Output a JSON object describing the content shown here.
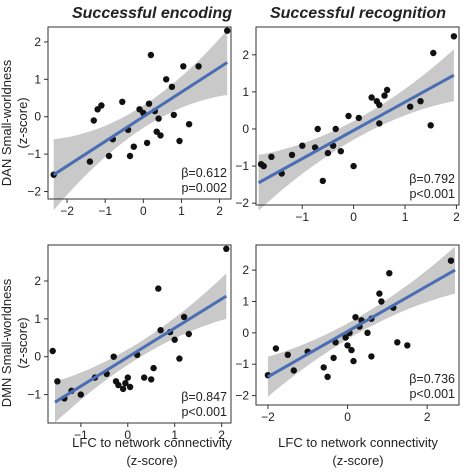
{
  "figure": {
    "column_titles": [
      "Successful encoding",
      "Successful recognition"
    ],
    "row_labels": [
      {
        "line1": "DAN Small-worldness",
        "line2": "(z-score)"
      },
      {
        "line1": "DMN Small-worldness",
        "line2": "(z-score)"
      }
    ],
    "x_label": {
      "line1": "LFC to network connectivity",
      "line2": "(z-score)"
    }
  },
  "colors": {
    "fit_line": "#4a6db3",
    "ci_band": "#c9c9c9",
    "points": "#111111",
    "frame": "#333333"
  },
  "chart_data": [
    {
      "id": "encoding-dan",
      "type": "scatter",
      "column": "Successful encoding",
      "ylabel": "DAN Small-worldness (z-score)",
      "xlim": [
        -2.5,
        2.3
      ],
      "ylim": [
        -2.2,
        2.4
      ],
      "xticks": [
        -2,
        -1,
        0,
        1,
        2
      ],
      "yticks": [
        -2,
        -1,
        0,
        1,
        2
      ],
      "xtick_labels": [
        "−2",
        "−1",
        "0",
        "1",
        "2"
      ],
      "ytick_labels": [
        "−2",
        "−1",
        "0",
        "1",
        "2"
      ],
      "fit": {
        "x1": -2.35,
        "y1": -1.55,
        "x2": 2.2,
        "y2": 1.45
      },
      "ci": {
        "spread_ends": 0.95,
        "spread_center": 0.3,
        "x_center": 0.0
      },
      "beta": "β=0.612",
      "p": "p=0.002",
      "points": [
        [
          -2.35,
          -1.55
        ],
        [
          -1.4,
          -1.2
        ],
        [
          -1.3,
          -0.1
        ],
        [
          -1.2,
          0.2
        ],
        [
          -1.1,
          0.3
        ],
        [
          -0.9,
          -1.05
        ],
        [
          -0.8,
          -0.6
        ],
        [
          -0.55,
          0.4
        ],
        [
          -0.4,
          -0.35
        ],
        [
          -0.35,
          -1.05
        ],
        [
          -0.25,
          -0.8
        ],
        [
          -0.1,
          0.2
        ],
        [
          0.0,
          0.1
        ],
        [
          0.1,
          -0.7
        ],
        [
          0.15,
          0.35
        ],
        [
          0.2,
          1.65
        ],
        [
          0.3,
          0.15
        ],
        [
          0.35,
          -0.4
        ],
        [
          0.4,
          -0.05
        ],
        [
          0.45,
          -0.5
        ],
        [
          0.6,
          1.0
        ],
        [
          0.75,
          0.8
        ],
        [
          0.95,
          -0.65
        ],
        [
          1.05,
          1.35
        ],
        [
          1.2,
          -0.2
        ],
        [
          1.45,
          1.35
        ],
        [
          2.2,
          2.3
        ],
        [
          0.8,
          0.05
        ]
      ]
    },
    {
      "id": "recognition-dan",
      "type": "scatter",
      "column": "Successful recognition",
      "ylabel": "DAN Small-worldness (z-score)",
      "xlim": [
        -1.9,
        2.05
      ],
      "ylim": [
        -2.05,
        2.75
      ],
      "xticks": [
        -1,
        0,
        1,
        2
      ],
      "yticks": [
        -2,
        -1,
        0,
        1,
        2
      ],
      "xtick_labels": [
        "−1",
        "0",
        "1",
        "2"
      ],
      "ytick_labels": [
        "−2",
        "−1",
        "0",
        "1",
        "2"
      ],
      "fit": {
        "x1": -1.85,
        "y1": -1.45,
        "x2": 1.95,
        "y2": 1.45
      },
      "ci": {
        "spread_ends": 0.75,
        "spread_center": 0.25,
        "x_center": 0.1
      },
      "beta": "β=0.792",
      "p": "p<0.001",
      "points": [
        [
          -1.8,
          -0.95
        ],
        [
          -1.75,
          -1.0
        ],
        [
          -1.6,
          -0.75
        ],
        [
          -1.4,
          -1.2
        ],
        [
          -1.2,
          -0.7
        ],
        [
          -1.0,
          -0.45
        ],
        [
          -0.75,
          -0.5
        ],
        [
          -0.7,
          0.0
        ],
        [
          -0.6,
          -1.4
        ],
        [
          -0.5,
          -0.65
        ],
        [
          -0.4,
          -0.45
        ],
        [
          -0.35,
          0.0
        ],
        [
          -0.25,
          -0.6
        ],
        [
          -0.1,
          0.35
        ],
        [
          0.0,
          -1.0
        ],
        [
          0.1,
          0.3
        ],
        [
          0.35,
          0.85
        ],
        [
          0.45,
          0.75
        ],
        [
          0.5,
          0.15
        ],
        [
          0.5,
          0.65
        ],
        [
          0.6,
          0.9
        ],
        [
          0.65,
          1.05
        ],
        [
          1.1,
          0.6
        ],
        [
          1.3,
          0.75
        ],
        [
          1.5,
          0.1
        ],
        [
          1.55,
          2.05
        ],
        [
          1.95,
          2.5
        ]
      ]
    },
    {
      "id": "encoding-dmn",
      "type": "scatter",
      "column": "Successful encoding",
      "ylabel": "DMN Small-worldness (z-score)",
      "xlim": [
        -1.7,
        2.2
      ],
      "ylim": [
        -1.75,
        2.95
      ],
      "xticks": [
        -1,
        0,
        1,
        2
      ],
      "yticks": [
        -1,
        0,
        1,
        2
      ],
      "xtick_labels": [
        "−1",
        "0",
        "1",
        "2"
      ],
      "ytick_labels": [
        "−1",
        "0",
        "1",
        "2"
      ],
      "fit": {
        "x1": -1.55,
        "y1": -1.2,
        "x2": 2.1,
        "y2": 1.6
      },
      "ci": {
        "spread_ends": 0.6,
        "spread_center": 0.2,
        "x_center": 0.2
      },
      "beta": "β=0.847",
      "p": "p<0.001",
      "points": [
        [
          -1.6,
          0.15
        ],
        [
          -1.5,
          -0.65
        ],
        [
          -1.35,
          -1.1
        ],
        [
          -1.2,
          -0.9
        ],
        [
          -1.0,
          -1.0
        ],
        [
          -0.7,
          -0.55
        ],
        [
          -0.45,
          -0.45
        ],
        [
          -0.3,
          0.0
        ],
        [
          -0.25,
          -0.65
        ],
        [
          -0.2,
          -0.75
        ],
        [
          -0.1,
          -0.85
        ],
        [
          -0.05,
          -0.7
        ],
        [
          0.0,
          -0.55
        ],
        [
          0.05,
          -0.8
        ],
        [
          0.2,
          0.05
        ],
        [
          0.35,
          -0.55
        ],
        [
          0.5,
          -0.6
        ],
        [
          0.55,
          -0.3
        ],
        [
          0.65,
          1.8
        ],
        [
          0.7,
          0.7
        ],
        [
          0.9,
          0.65
        ],
        [
          1.0,
          0.45
        ],
        [
          1.1,
          -0.05
        ],
        [
          1.2,
          1.05
        ],
        [
          1.3,
          0.6
        ],
        [
          2.1,
          2.85
        ]
      ]
    },
    {
      "id": "recognition-dmn",
      "type": "scatter",
      "column": "Successful recognition",
      "ylabel": "DMN Small-worldness (z-score)",
      "xlim": [
        -2.3,
        2.8
      ],
      "ylim": [
        -2.3,
        2.8
      ],
      "xticks": [
        -2,
        0,
        2
      ],
      "yticks": [
        -2,
        -1,
        0,
        1,
        2
      ],
      "xtick_labels": [
        "−2",
        "0",
        "2"
      ],
      "ytick_labels": [
        "−2",
        "−1",
        "0",
        "1",
        "2"
      ],
      "fit": {
        "x1": -2.0,
        "y1": -1.4,
        "x2": 2.7,
        "y2": 2.0
      },
      "ci": {
        "spread_ends": 0.75,
        "spread_center": 0.25,
        "x_center": 0.2
      },
      "beta": "β=0.736",
      "p": "p<0.001",
      "points": [
        [
          -2.0,
          -1.35
        ],
        [
          -1.8,
          -0.5
        ],
        [
          -1.5,
          -0.7
        ],
        [
          -1.35,
          -1.2
        ],
        [
          -1.0,
          -0.6
        ],
        [
          -0.6,
          -1.1
        ],
        [
          -0.5,
          -1.4
        ],
        [
          -0.35,
          -0.8
        ],
        [
          -0.3,
          -0.3
        ],
        [
          -0.05,
          -0.15
        ],
        [
          0.0,
          -0.4
        ],
        [
          0.05,
          0.0
        ],
        [
          0.1,
          -0.55
        ],
        [
          0.15,
          -0.9
        ],
        [
          0.2,
          0.5
        ],
        [
          0.3,
          0.2
        ],
        [
          0.35,
          0.4
        ],
        [
          0.5,
          0.0
        ],
        [
          0.6,
          0.45
        ],
        [
          0.6,
          -0.75
        ],
        [
          0.8,
          1.25
        ],
        [
          0.85,
          1.0
        ],
        [
          1.05,
          1.9
        ],
        [
          1.15,
          0.8
        ],
        [
          1.25,
          -0.3
        ],
        [
          1.5,
          -0.4
        ],
        [
          2.6,
          2.3
        ]
      ]
    }
  ]
}
